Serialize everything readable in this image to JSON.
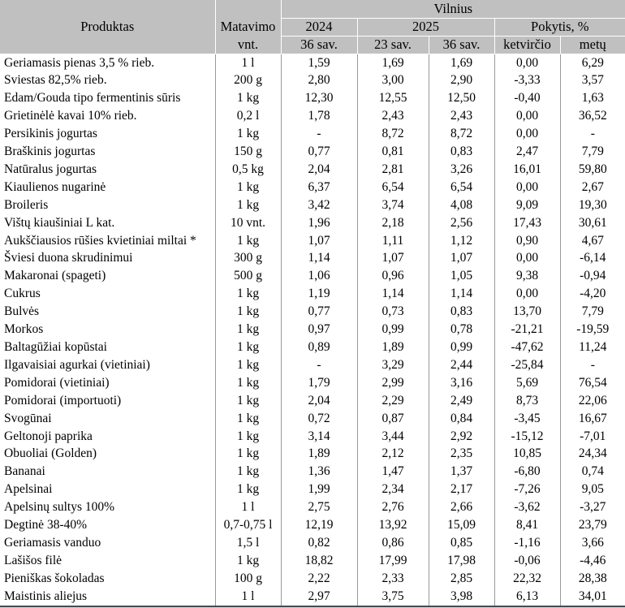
{
  "table": {
    "header": {
      "produktas": "Produktas",
      "matavimo_line1": "Matavimo",
      "matavimo_line2": "vnt.",
      "city_group": "Vilnius",
      "year_2024": "2024",
      "year_2025": "2025",
      "change_group": "Pokytis, %",
      "week_2024_36": "36 sav.",
      "week_2025_23": "23 sav.",
      "week_2025_36": "36 sav.",
      "change_quarter": "ketvirčio",
      "change_year": "metų"
    },
    "rows": [
      {
        "name": "Geriamasis pienas 3,5 % rieb.",
        "unit": "1 l",
        "values": [
          "1,59",
          "1,69",
          "1,69",
          "0,00",
          "6,29"
        ]
      },
      {
        "name": "Sviestas 82,5% rieb.",
        "unit": "200 g",
        "values": [
          "2,80",
          "3,00",
          "2,90",
          "-3,33",
          "3,57"
        ]
      },
      {
        "name": "Edam/Gouda tipo fermentinis sūris",
        "unit": "1 kg",
        "values": [
          "12,30",
          "12,55",
          "12,50",
          "-0,40",
          "1,63"
        ]
      },
      {
        "name": "Grietinėlė kavai 10% rieb.",
        "unit": "0,2 l",
        "values": [
          "1,78",
          "2,43",
          "2,43",
          "0,00",
          "36,52"
        ]
      },
      {
        "name": "Persikinis jogurtas",
        "unit": "1 kg",
        "values": [
          "-",
          "8,72",
          "8,72",
          "0,00",
          "-"
        ]
      },
      {
        "name": "Braškinis jogurtas",
        "unit": "150 g",
        "values": [
          "0,77",
          "0,81",
          "0,83",
          "2,47",
          "7,79"
        ]
      },
      {
        "name": "Natūralus jogurtas",
        "unit": "0,5 kg",
        "values": [
          "2,04",
          "2,81",
          "3,26",
          "16,01",
          "59,80"
        ]
      },
      {
        "name": "Kiaulienos nugarinė",
        "unit": "1 kg",
        "values": [
          "6,37",
          "6,54",
          "6,54",
          "0,00",
          "2,67"
        ]
      },
      {
        "name": "Broileris",
        "unit": "1 kg",
        "values": [
          "3,42",
          "3,74",
          "4,08",
          "9,09",
          "19,30"
        ]
      },
      {
        "name": "Vištų kiaušiniai L kat.",
        "unit": "10 vnt.",
        "values": [
          "1,96",
          "2,18",
          "2,56",
          "17,43",
          "30,61"
        ]
      },
      {
        "name": "Aukščiausios rūšies kvietiniai miltai *",
        "unit": "1 kg",
        "values": [
          "1,07",
          "1,11",
          "1,12",
          "0,90",
          "4,67"
        ]
      },
      {
        "name": "Šviesi duona skrudinimui",
        "unit": "300 g",
        "values": [
          "1,14",
          "1,07",
          "1,07",
          "0,00",
          "-6,14"
        ]
      },
      {
        "name": "Makaronai (spageti)",
        "unit": "500 g",
        "values": [
          "1,06",
          "0,96",
          "1,05",
          "9,38",
          "-0,94"
        ]
      },
      {
        "name": "Cukrus",
        "unit": "1 kg",
        "values": [
          "1,19",
          "1,14",
          "1,14",
          "0,00",
          "-4,20"
        ]
      },
      {
        "name": "Bulvės",
        "unit": "1 kg",
        "values": [
          "0,77",
          "0,73",
          "0,83",
          "13,70",
          "7,79"
        ]
      },
      {
        "name": "Morkos",
        "unit": "1 kg",
        "values": [
          "0,97",
          "0,99",
          "0,78",
          "-21,21",
          "-19,59"
        ]
      },
      {
        "name": "Baltagūžiai kopūstai",
        "unit": "1 kg",
        "values": [
          "0,89",
          "1,89",
          "0,99",
          "-47,62",
          "11,24"
        ]
      },
      {
        "name": "Ilgavaisiai agurkai (vietiniai)",
        "unit": "1 kg",
        "values": [
          "-",
          "3,29",
          "2,44",
          "-25,84",
          "-"
        ]
      },
      {
        "name": "Pomidorai (vietiniai)",
        "unit": "1 kg",
        "values": [
          "1,79",
          "2,99",
          "3,16",
          "5,69",
          "76,54"
        ]
      },
      {
        "name": "Pomidorai (importuoti)",
        "unit": "1 kg",
        "values": [
          "2,04",
          "2,29",
          "2,49",
          "8,73",
          "22,06"
        ]
      },
      {
        "name": "Svogūnai",
        "unit": "1 kg",
        "values": [
          "0,72",
          "0,87",
          "0,84",
          "-3,45",
          "16,67"
        ]
      },
      {
        "name": "Geltonoji paprika",
        "unit": "1 kg",
        "values": [
          "3,14",
          "3,44",
          "2,92",
          "-15,12",
          "-7,01"
        ]
      },
      {
        "name": "Obuoliai (Golden)",
        "unit": "1 kg",
        "values": [
          "1,89",
          "2,12",
          "2,35",
          "10,85",
          "24,34"
        ]
      },
      {
        "name": "Bananai",
        "unit": "1 kg",
        "values": [
          "1,36",
          "1,47",
          "1,37",
          "-6,80",
          "0,74"
        ]
      },
      {
        "name": "Apelsinai",
        "unit": "1 kg",
        "values": [
          "1,99",
          "2,34",
          "2,17",
          "-7,26",
          "9,05"
        ]
      },
      {
        "name": "Apelsinų sultys 100%",
        "unit": "1 l",
        "values": [
          "2,75",
          "2,76",
          "2,66",
          "-3,62",
          "-3,27"
        ]
      },
      {
        "name": "Degtinė 38-40%",
        "unit": "0,7-0,75 l",
        "values": [
          "12,19",
          "13,92",
          "15,09",
          "8,41",
          "23,79"
        ]
      },
      {
        "name": "Geriamasis vanduo",
        "unit": "1,5 l",
        "values": [
          "0,82",
          "0,86",
          "0,85",
          "-1,16",
          "3,66"
        ]
      },
      {
        "name": "Lašišos filė",
        "unit": "1 kg",
        "values": [
          "18,82",
          "17,99",
          "17,98",
          "-0,06",
          "-4,46"
        ]
      },
      {
        "name": "Pieniškas šokoladas",
        "unit": "100 g",
        "values": [
          "2,22",
          "2,33",
          "2,85",
          "22,32",
          "28,38"
        ]
      },
      {
        "name": "Maistinis aliejus",
        "unit": "1 l",
        "values": [
          "2,97",
          "3,75",
          "3,98",
          "6,13",
          "34,01"
        ]
      }
    ]
  },
  "colors": {
    "header_bg": "#c0c0c0",
    "header_line": "#ffffff",
    "grid_line": "#999999",
    "bottom_border": "#4a4a4a",
    "bottom_strip": "#ccd9e8"
  }
}
